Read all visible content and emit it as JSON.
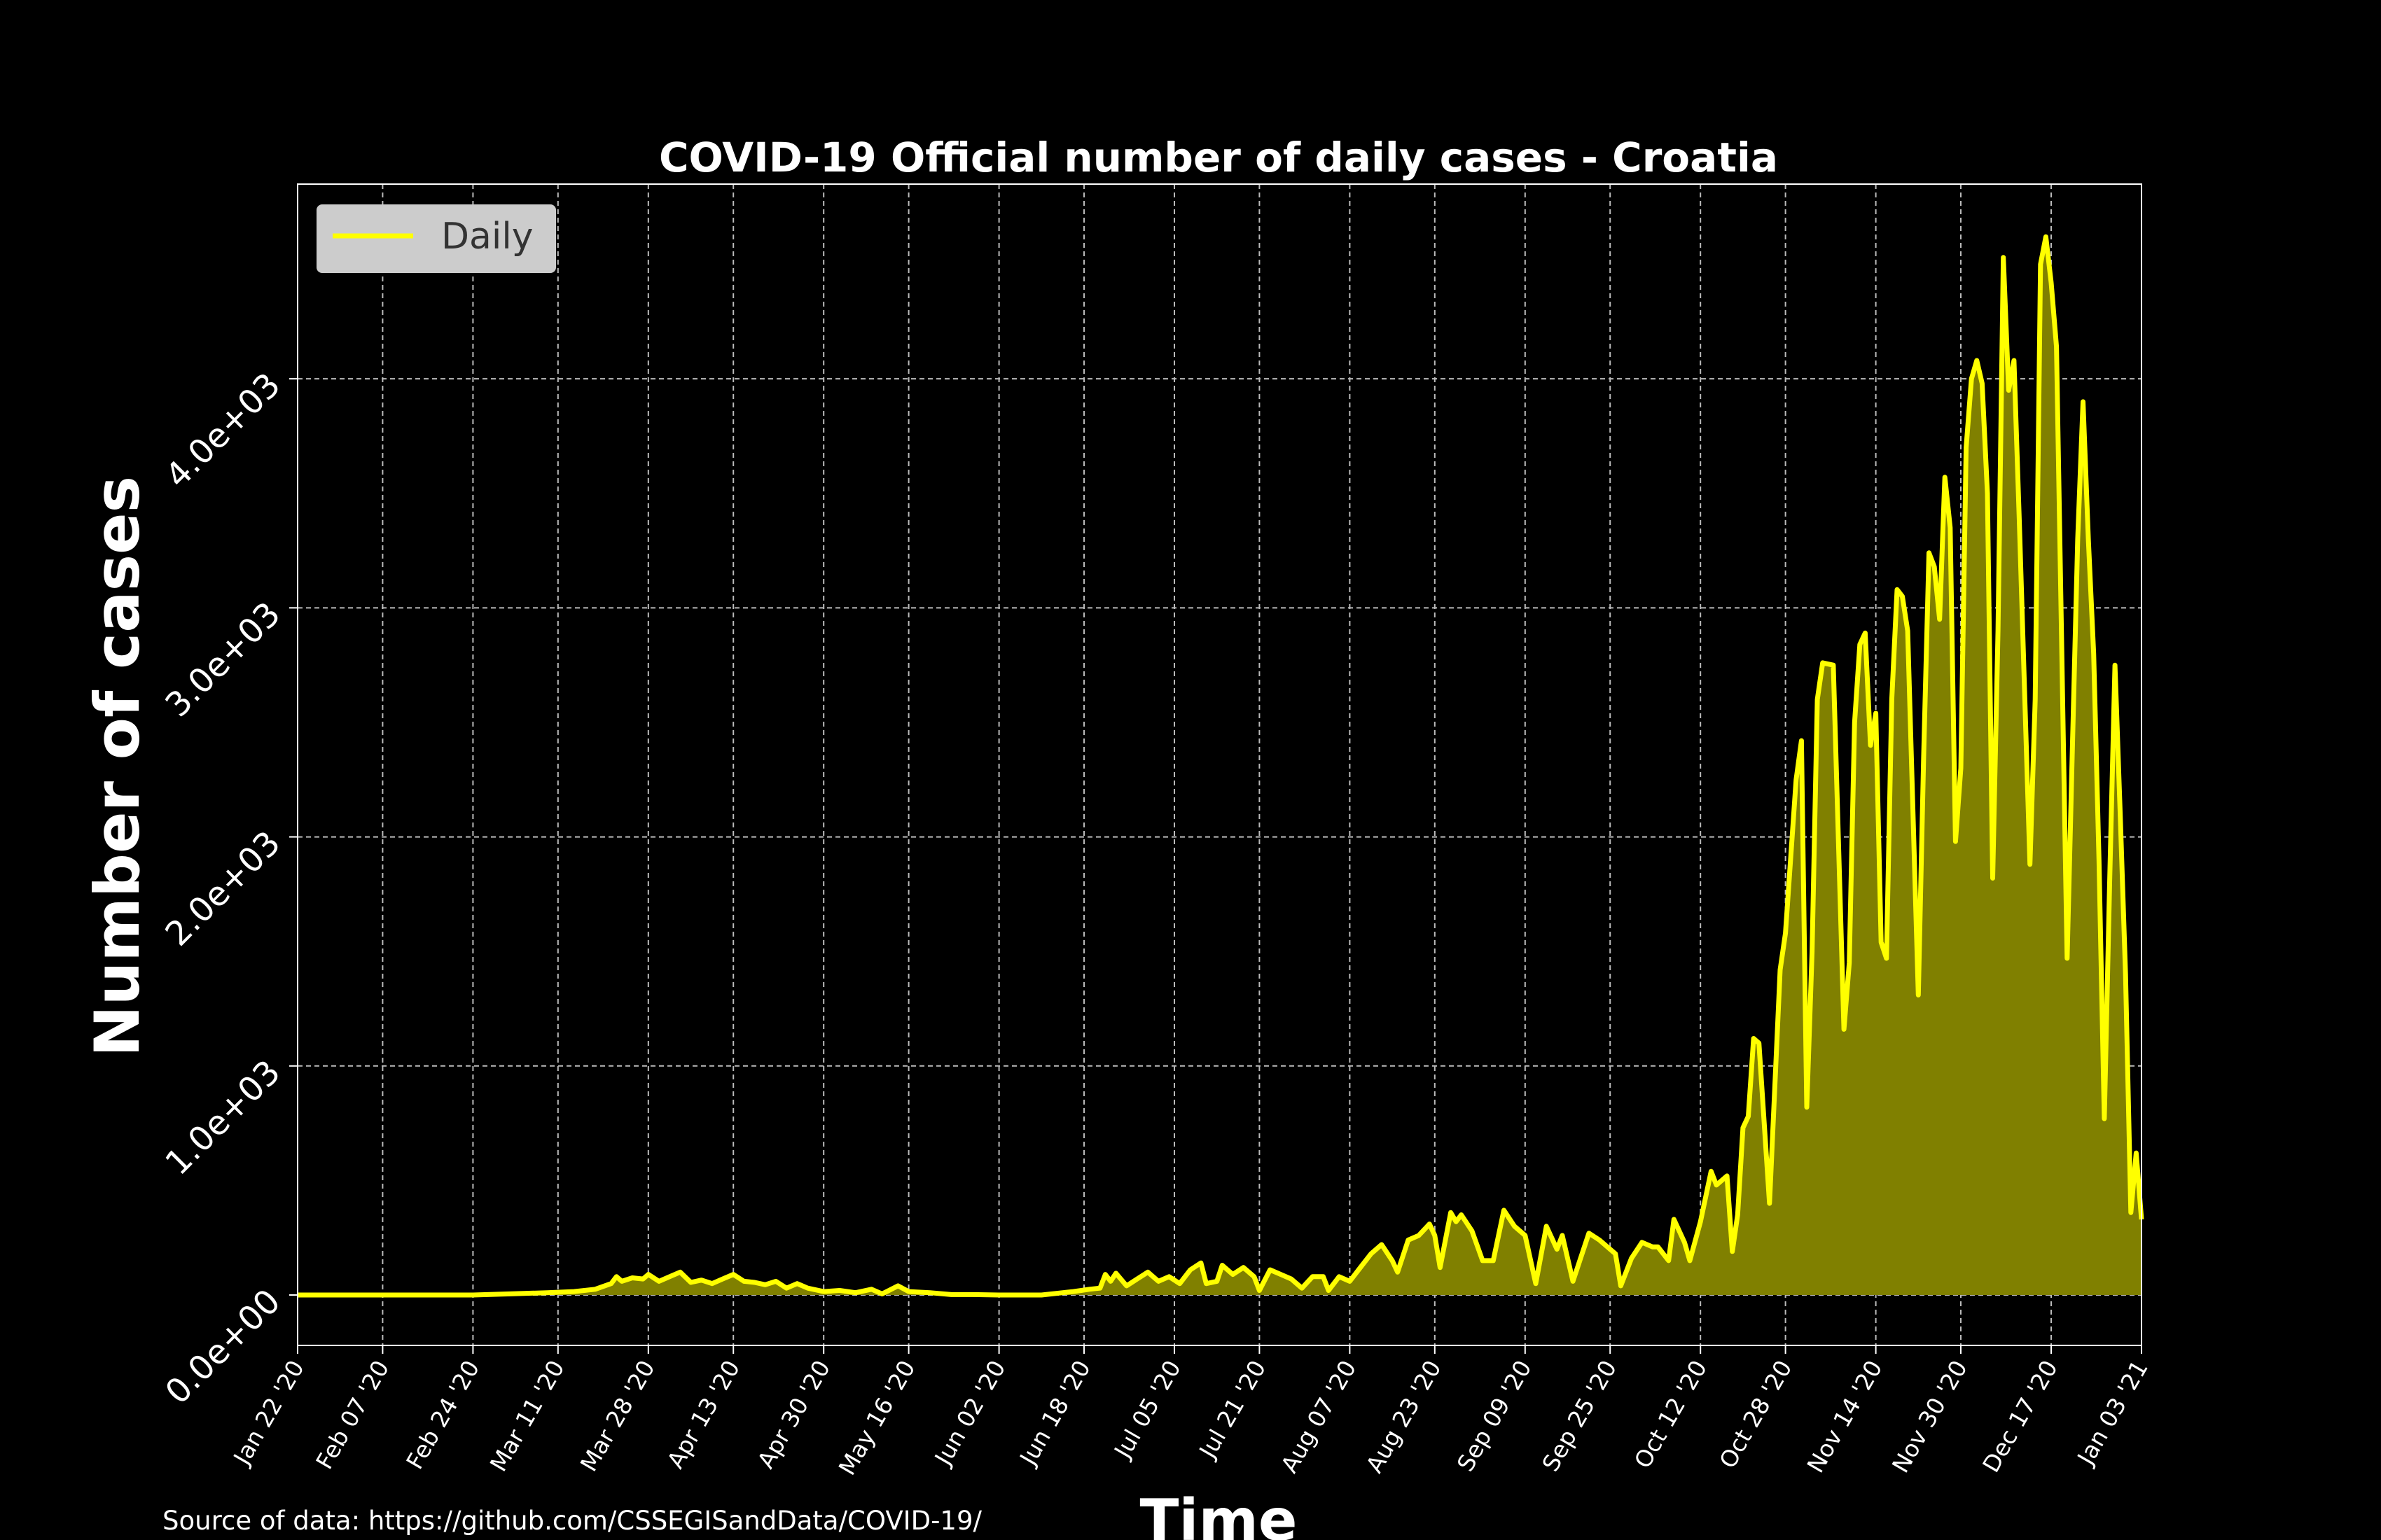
{
  "chart_data": {
    "type": "area",
    "title": "COVID-19 Official number of daily cases - Croatia",
    "xlabel": "Time",
    "ylabel": "Number of cases",
    "source": "Source of data: https://github.com/CSSEGISandData/COVID-19/",
    "x_range": [
      "2020-01-22",
      "2021-01-03"
    ],
    "ylim": [
      -220,
      4850
    ],
    "grid": true,
    "legend_position": "upper-left",
    "line_color": "#ffff00",
    "fill_color": "#808000",
    "y_ticks": [
      {
        "value": 0,
        "label": "0.0e+00"
      },
      {
        "value": 1000,
        "label": "1.0e+03"
      },
      {
        "value": 2000,
        "label": "2.0e+03"
      },
      {
        "value": 3000,
        "label": "3.0e+03"
      },
      {
        "value": 4000,
        "label": "4.0e+03"
      }
    ],
    "x_ticks": [
      {
        "date": "2020-01-22",
        "label": "Jan 22 '20"
      },
      {
        "date": "2020-02-07",
        "label": "Feb 07 '20"
      },
      {
        "date": "2020-02-24",
        "label": "Feb 24 '20"
      },
      {
        "date": "2020-03-11",
        "label": "Mar 11 '20"
      },
      {
        "date": "2020-03-28",
        "label": "Mar 28 '20"
      },
      {
        "date": "2020-04-13",
        "label": "Apr 13 '20"
      },
      {
        "date": "2020-04-30",
        "label": "Apr 30 '20"
      },
      {
        "date": "2020-05-16",
        "label": "May 16 '20"
      },
      {
        "date": "2020-06-02",
        "label": "Jun 02 '20"
      },
      {
        "date": "2020-06-18",
        "label": "Jun 18 '20"
      },
      {
        "date": "2020-07-05",
        "label": "Jul 05 '20"
      },
      {
        "date": "2020-07-21",
        "label": "Jul 21 '20"
      },
      {
        "date": "2020-08-07",
        "label": "Aug 07 '20"
      },
      {
        "date": "2020-08-23",
        "label": "Aug 23 '20"
      },
      {
        "date": "2020-09-09",
        "label": "Sep 09 '20"
      },
      {
        "date": "2020-09-25",
        "label": "Sep 25 '20"
      },
      {
        "date": "2020-10-12",
        "label": "Oct 12 '20"
      },
      {
        "date": "2020-10-28",
        "label": "Oct 28 '20"
      },
      {
        "date": "2020-11-14",
        "label": "Nov 14 '20"
      },
      {
        "date": "2020-11-30",
        "label": "Nov 30 '20"
      },
      {
        "date": "2020-12-17",
        "label": "Dec 17 '20"
      },
      {
        "date": "2021-01-03",
        "label": "Jan 03 '21"
      }
    ],
    "series": [
      {
        "name": "Daily",
        "points": [
          [
            "2020-01-22",
            0
          ],
          [
            "2020-02-24",
            0
          ],
          [
            "2020-03-02",
            5
          ],
          [
            "2020-03-09",
            10
          ],
          [
            "2020-03-14",
            15
          ],
          [
            "2020-03-18",
            25
          ],
          [
            "2020-03-21",
            50
          ],
          [
            "2020-03-22",
            80
          ],
          [
            "2020-03-23",
            60
          ],
          [
            "2020-03-25",
            75
          ],
          [
            "2020-03-27",
            70
          ],
          [
            "2020-03-28",
            90
          ],
          [
            "2020-03-30",
            60
          ],
          [
            "2020-04-01",
            80
          ],
          [
            "2020-04-03",
            100
          ],
          [
            "2020-04-05",
            55
          ],
          [
            "2020-04-07",
            65
          ],
          [
            "2020-04-09",
            50
          ],
          [
            "2020-04-11",
            70
          ],
          [
            "2020-04-13",
            90
          ],
          [
            "2020-04-15",
            60
          ],
          [
            "2020-04-17",
            55
          ],
          [
            "2020-04-19",
            45
          ],
          [
            "2020-04-21",
            60
          ],
          [
            "2020-04-23",
            30
          ],
          [
            "2020-04-25",
            50
          ],
          [
            "2020-04-27",
            30
          ],
          [
            "2020-04-30",
            15
          ],
          [
            "2020-05-03",
            20
          ],
          [
            "2020-05-06",
            10
          ],
          [
            "2020-05-09",
            25
          ],
          [
            "2020-05-11",
            5
          ],
          [
            "2020-05-14",
            40
          ],
          [
            "2020-05-16",
            15
          ],
          [
            "2020-05-20",
            10
          ],
          [
            "2020-05-24",
            2
          ],
          [
            "2020-05-28",
            2
          ],
          [
            "2020-06-02",
            0
          ],
          [
            "2020-06-06",
            0
          ],
          [
            "2020-06-10",
            0
          ],
          [
            "2020-06-14",
            10
          ],
          [
            "2020-06-16",
            15
          ],
          [
            "2020-06-19",
            25
          ],
          [
            "2020-06-21",
            30
          ],
          [
            "2020-06-22",
            90
          ],
          [
            "2020-06-23",
            60
          ],
          [
            "2020-06-24",
            95
          ],
          [
            "2020-06-26",
            40
          ],
          [
            "2020-06-28",
            70
          ],
          [
            "2020-06-30",
            100
          ],
          [
            "2020-07-02",
            60
          ],
          [
            "2020-07-04",
            80
          ],
          [
            "2020-07-06",
            50
          ],
          [
            "2020-07-08",
            110
          ],
          [
            "2020-07-10",
            140
          ],
          [
            "2020-07-11",
            50
          ],
          [
            "2020-07-13",
            60
          ],
          [
            "2020-07-14",
            130
          ],
          [
            "2020-07-16",
            90
          ],
          [
            "2020-07-18",
            120
          ],
          [
            "2020-07-20",
            80
          ],
          [
            "2020-07-21",
            20
          ],
          [
            "2020-07-23",
            110
          ],
          [
            "2020-07-25",
            90
          ],
          [
            "2020-07-27",
            70
          ],
          [
            "2020-07-29",
            30
          ],
          [
            "2020-07-31",
            80
          ],
          [
            "2020-08-02",
            80
          ],
          [
            "2020-08-03",
            20
          ],
          [
            "2020-08-05",
            80
          ],
          [
            "2020-08-07",
            60
          ],
          [
            "2020-08-09",
            120
          ],
          [
            "2020-08-11",
            180
          ],
          [
            "2020-08-13",
            220
          ],
          [
            "2020-08-15",
            150
          ],
          [
            "2020-08-16",
            100
          ],
          [
            "2020-08-18",
            240
          ],
          [
            "2020-08-20",
            260
          ],
          [
            "2020-08-22",
            310
          ],
          [
            "2020-08-23",
            260
          ],
          [
            "2020-08-24",
            120
          ],
          [
            "2020-08-26",
            360
          ],
          [
            "2020-08-27",
            320
          ],
          [
            "2020-08-28",
            350
          ],
          [
            "2020-08-30",
            280
          ],
          [
            "2020-09-01",
            150
          ],
          [
            "2020-09-03",
            150
          ],
          [
            "2020-09-05",
            370
          ],
          [
            "2020-09-07",
            300
          ],
          [
            "2020-09-09",
            260
          ],
          [
            "2020-09-11",
            50
          ],
          [
            "2020-09-13",
            300
          ],
          [
            "2020-09-15",
            200
          ],
          [
            "2020-09-16",
            260
          ],
          [
            "2020-09-18",
            60
          ],
          [
            "2020-09-21",
            270
          ],
          [
            "2020-09-23",
            240
          ],
          [
            "2020-09-25",
            200
          ],
          [
            "2020-09-26",
            180
          ],
          [
            "2020-09-27",
            40
          ],
          [
            "2020-09-29",
            160
          ],
          [
            "2020-10-01",
            230
          ],
          [
            "2020-10-03",
            210
          ],
          [
            "2020-10-04",
            210
          ],
          [
            "2020-10-06",
            150
          ],
          [
            "2020-10-07",
            330
          ],
          [
            "2020-10-09",
            230
          ],
          [
            "2020-10-10",
            150
          ],
          [
            "2020-10-12",
            320
          ],
          [
            "2020-10-14",
            540
          ],
          [
            "2020-10-15",
            480
          ],
          [
            "2020-10-17",
            520
          ],
          [
            "2020-10-18",
            190
          ],
          [
            "2020-10-19",
            350
          ],
          [
            "2020-10-20",
            730
          ],
          [
            "2020-10-21",
            780
          ],
          [
            "2020-10-22",
            1120
          ],
          [
            "2020-10-23",
            1100
          ],
          [
            "2020-10-25",
            400
          ],
          [
            "2020-10-27",
            1420
          ],
          [
            "2020-10-28",
            1580
          ],
          [
            "2020-10-30",
            2250
          ],
          [
            "2020-10-31",
            2420
          ],
          [
            "2020-11-01",
            820
          ],
          [
            "2020-11-02",
            1500
          ],
          [
            "2020-11-03",
            2600
          ],
          [
            "2020-11-04",
            2760
          ],
          [
            "2020-11-06",
            2750
          ],
          [
            "2020-11-08",
            1160
          ],
          [
            "2020-11-09",
            1450
          ],
          [
            "2020-11-10",
            2500
          ],
          [
            "2020-11-11",
            2840
          ],
          [
            "2020-11-12",
            2890
          ],
          [
            "2020-11-13",
            2400
          ],
          [
            "2020-11-14",
            2540
          ],
          [
            "2020-11-15",
            1540
          ],
          [
            "2020-11-16",
            1470
          ],
          [
            "2020-11-17",
            2600
          ],
          [
            "2020-11-18",
            3080
          ],
          [
            "2020-11-19",
            3050
          ],
          [
            "2020-11-20",
            2900
          ],
          [
            "2020-11-22",
            1310
          ],
          [
            "2020-11-23",
            2350
          ],
          [
            "2020-11-24",
            3240
          ],
          [
            "2020-11-25",
            3180
          ],
          [
            "2020-11-26",
            2950
          ],
          [
            "2020-11-27",
            3570
          ],
          [
            "2020-11-28",
            3350
          ],
          [
            "2020-11-29",
            1980
          ],
          [
            "2020-11-30",
            2300
          ],
          [
            "2020-12-01",
            3700
          ],
          [
            "2020-12-02",
            4000
          ],
          [
            "2020-12-03",
            4080
          ],
          [
            "2020-12-04",
            3980
          ],
          [
            "2020-12-05",
            3500
          ],
          [
            "2020-12-06",
            1820
          ],
          [
            "2020-12-07",
            2900
          ],
          [
            "2020-12-08",
            4530
          ],
          [
            "2020-12-09",
            3950
          ],
          [
            "2020-12-10",
            4080
          ],
          [
            "2020-12-11",
            3380
          ],
          [
            "2020-12-13",
            1880
          ],
          [
            "2020-12-14",
            2600
          ],
          [
            "2020-12-15",
            4500
          ],
          [
            "2020-12-16",
            4620
          ],
          [
            "2020-12-17",
            4420
          ],
          [
            "2020-12-18",
            4140
          ],
          [
            "2020-12-20",
            1470
          ],
          [
            "2020-12-21",
            2400
          ],
          [
            "2020-12-22",
            3300
          ],
          [
            "2020-12-23",
            3900
          ],
          [
            "2020-12-24",
            3300
          ],
          [
            "2020-12-25",
            2800
          ],
          [
            "2020-12-26",
            1900
          ],
          [
            "2020-12-27",
            770
          ],
          [
            "2020-12-28",
            1800
          ],
          [
            "2020-12-29",
            2750
          ],
          [
            "2020-12-30",
            2100
          ],
          [
            "2020-12-31",
            1400
          ],
          [
            "2021-01-01",
            360
          ],
          [
            "2021-01-02",
            620
          ],
          [
            "2021-01-03",
            330
          ]
        ]
      }
    ]
  }
}
